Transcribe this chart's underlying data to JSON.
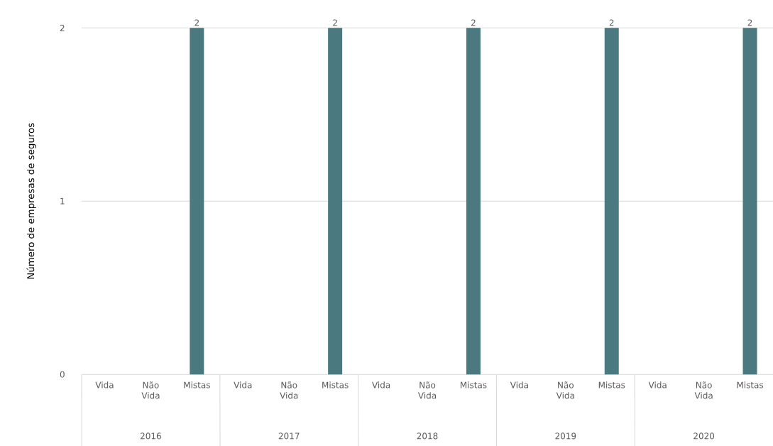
{
  "chart_data": {
    "type": "bar",
    "ylabel": "Número de empresas de seguros",
    "categories": [
      "Vida",
      "Não Vida",
      "Mistas",
      "Vida",
      "Não Vida",
      "Mistas",
      "Vida",
      "Não Vida",
      "Mistas",
      "Vida",
      "Não Vida",
      "Mistas",
      "Vida",
      "Não Vida",
      "Mistas"
    ],
    "values": [
      0,
      0,
      2,
      0,
      0,
      2,
      0,
      0,
      2,
      0,
      0,
      2,
      0,
      0,
      2
    ],
    "value_labels": [
      null,
      null,
      "2",
      null,
      null,
      "2",
      null,
      null,
      "2",
      null,
      null,
      "2",
      null,
      null,
      "2"
    ],
    "color": "#4a7a80",
    "ylim": [
      0,
      2
    ],
    "yticks": [
      0,
      1,
      2
    ],
    "grid": "y",
    "annotations": [
      "2016",
      "2017",
      "2018",
      "2019",
      "2020"
    ]
  }
}
